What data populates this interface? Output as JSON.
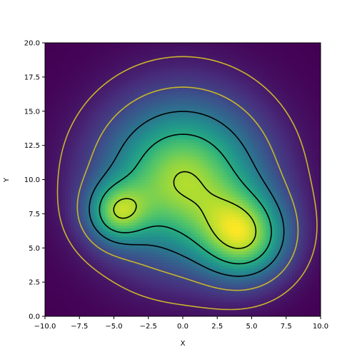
{
  "chart_data": {
    "type": "contour",
    "x_label": "X",
    "y_label": "Y",
    "xlim": [
      -10,
      10
    ],
    "ylim": [
      0,
      20
    ],
    "xticks": [
      {
        "value": -10,
        "label": "−10.0"
      },
      {
        "value": -7.5,
        "label": "−7.5"
      },
      {
        "value": -5,
        "label": "−5.0"
      },
      {
        "value": -2.5,
        "label": "−2.5"
      },
      {
        "value": 0,
        "label": "0.0"
      },
      {
        "value": 2.5,
        "label": "2.5"
      },
      {
        "value": 5,
        "label": "5.0"
      },
      {
        "value": 7.5,
        "label": "7.5"
      },
      {
        "value": 10,
        "label": "10.0"
      }
    ],
    "yticks": [
      {
        "value": 0,
        "label": "0.0"
      },
      2.5,
      {
        "value": 5,
        "label": "5.0"
      },
      7.5,
      {
        "value": 10,
        "label": "10.0"
      },
      12.5,
      {
        "value": 15,
        "label": "15.0"
      },
      17.5,
      {
        "value": 20,
        "label": "20.0"
      }
    ],
    "peaks": [
      {
        "x": 0,
        "y": 10,
        "amplitude": 1,
        "spread": 4
      },
      {
        "x": 4.5,
        "y": 5.8,
        "amplitude": 0.8,
        "spread": 2.2
      },
      {
        "x": -4.8,
        "y": 7.6,
        "amplitude": 0.62,
        "spread": 1.5
      }
    ],
    "levels": [
      0.08,
      0.24,
      0.46,
      0.71,
      1.0
    ],
    "level_colors": [
      "#c9b52a",
      "#c9b52a",
      "#000000",
      "#000000",
      "#000000"
    ],
    "colormap": "viridis"
  }
}
